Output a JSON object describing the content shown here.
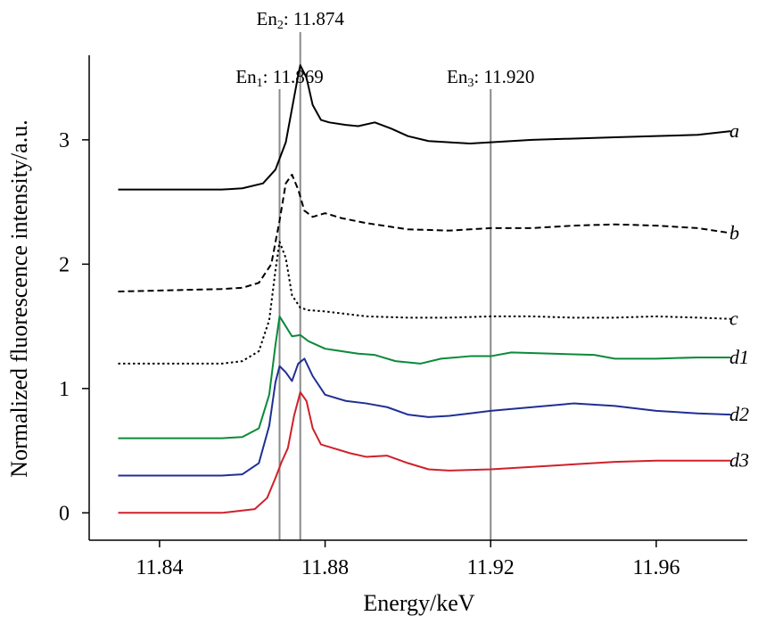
{
  "chart_data": {
    "type": "line",
    "xlabel": "Energy/keV",
    "ylabel": "Normalized fluorescence intensity/a.u.",
    "xlim": [
      11.823,
      11.982
    ],
    "ylim": [
      -0.22,
      3.68
    ],
    "xticks": [
      11.84,
      11.88,
      11.92,
      11.96
    ],
    "xtick_labels": [
      "11.84",
      "11.88",
      "11.92",
      "11.96"
    ],
    "yticks": [
      0,
      1,
      2,
      3
    ],
    "ytick_labels": [
      "0",
      "1",
      "2",
      "3"
    ],
    "grid": false,
    "reference_lines": [
      {
        "prefix": "En",
        "sub": "1",
        "text": ": 11.869",
        "x": 11.869
      },
      {
        "prefix": "En",
        "sub": "2",
        "text": ": 11.874",
        "x": 11.874
      },
      {
        "prefix": "En",
        "sub": "3",
        "text": ": 11.920",
        "x": 11.92
      }
    ],
    "series": [
      {
        "name": "a",
        "color": "#000000",
        "dash": "solid",
        "points": [
          [
            11.83,
            2.6
          ],
          [
            11.855,
            2.6
          ],
          [
            11.86,
            2.61
          ],
          [
            11.865,
            2.65
          ],
          [
            11.868,
            2.76
          ],
          [
            11.8705,
            2.98
          ],
          [
            11.872,
            3.25
          ],
          [
            11.8735,
            3.52
          ],
          [
            11.874,
            3.6
          ],
          [
            11.8755,
            3.5
          ],
          [
            11.877,
            3.28
          ],
          [
            11.879,
            3.16
          ],
          [
            11.881,
            3.14
          ],
          [
            11.885,
            3.12
          ],
          [
            11.888,
            3.11
          ],
          [
            11.892,
            3.14
          ],
          [
            11.896,
            3.09
          ],
          [
            11.9,
            3.03
          ],
          [
            11.905,
            2.99
          ],
          [
            11.91,
            2.98
          ],
          [
            11.915,
            2.97
          ],
          [
            11.92,
            2.98
          ],
          [
            11.93,
            3.0
          ],
          [
            11.94,
            3.01
          ],
          [
            11.95,
            3.02
          ],
          [
            11.96,
            3.03
          ],
          [
            11.97,
            3.04
          ],
          [
            11.978,
            3.07
          ]
        ]
      },
      {
        "name": "b",
        "color": "#000000",
        "dash": "dashed",
        "points": [
          [
            11.83,
            1.78
          ],
          [
            11.855,
            1.8
          ],
          [
            11.86,
            1.81
          ],
          [
            11.864,
            1.85
          ],
          [
            11.867,
            2.0
          ],
          [
            11.869,
            2.35
          ],
          [
            11.8705,
            2.65
          ],
          [
            11.872,
            2.72
          ],
          [
            11.8735,
            2.6
          ],
          [
            11.875,
            2.43
          ],
          [
            11.877,
            2.38
          ],
          [
            11.88,
            2.41
          ],
          [
            11.884,
            2.37
          ],
          [
            11.89,
            2.33
          ],
          [
            11.9,
            2.28
          ],
          [
            11.91,
            2.27
          ],
          [
            11.92,
            2.29
          ],
          [
            11.93,
            2.29
          ],
          [
            11.94,
            2.31
          ],
          [
            11.95,
            2.32
          ],
          [
            11.96,
            2.31
          ],
          [
            11.97,
            2.29
          ],
          [
            11.978,
            2.25
          ]
        ]
      },
      {
        "name": "c",
        "color": "#000000",
        "dash": "dotted",
        "points": [
          [
            11.83,
            1.2
          ],
          [
            11.855,
            1.2
          ],
          [
            11.86,
            1.22
          ],
          [
            11.864,
            1.3
          ],
          [
            11.8665,
            1.55
          ],
          [
            11.868,
            1.95
          ],
          [
            11.869,
            2.18
          ],
          [
            11.8705,
            2.05
          ],
          [
            11.872,
            1.75
          ],
          [
            11.874,
            1.65
          ],
          [
            11.876,
            1.63
          ],
          [
            11.88,
            1.62
          ],
          [
            11.885,
            1.6
          ],
          [
            11.89,
            1.58
          ],
          [
            11.9,
            1.57
          ],
          [
            11.91,
            1.57
          ],
          [
            11.92,
            1.58
          ],
          [
            11.93,
            1.58
          ],
          [
            11.94,
            1.57
          ],
          [
            11.95,
            1.57
          ],
          [
            11.96,
            1.58
          ],
          [
            11.97,
            1.57
          ],
          [
            11.978,
            1.56
          ]
        ]
      },
      {
        "name": "d1",
        "color": "#0a8a3a",
        "dash": "solid",
        "points": [
          [
            11.83,
            0.6
          ],
          [
            11.855,
            0.6
          ],
          [
            11.86,
            0.61
          ],
          [
            11.864,
            0.68
          ],
          [
            11.8665,
            0.95
          ],
          [
            11.868,
            1.35
          ],
          [
            11.869,
            1.58
          ],
          [
            11.8705,
            1.5
          ],
          [
            11.872,
            1.42
          ],
          [
            11.874,
            1.43
          ],
          [
            11.876,
            1.38
          ],
          [
            11.88,
            1.32
          ],
          [
            11.884,
            1.3
          ],
          [
            11.888,
            1.28
          ],
          [
            11.892,
            1.27
          ],
          [
            11.897,
            1.22
          ],
          [
            11.903,
            1.2
          ],
          [
            11.908,
            1.24
          ],
          [
            11.915,
            1.26
          ],
          [
            11.92,
            1.26
          ],
          [
            11.925,
            1.29
          ],
          [
            11.935,
            1.28
          ],
          [
            11.945,
            1.27
          ],
          [
            11.95,
            1.24
          ],
          [
            11.96,
            1.24
          ],
          [
            11.97,
            1.25
          ],
          [
            11.978,
            1.25
          ]
        ]
      },
      {
        "name": "d2",
        "color": "#1f2f94",
        "dash": "solid",
        "points": [
          [
            11.83,
            0.3
          ],
          [
            11.855,
            0.3
          ],
          [
            11.86,
            0.31
          ],
          [
            11.864,
            0.4
          ],
          [
            11.8665,
            0.7
          ],
          [
            11.868,
            1.05
          ],
          [
            11.869,
            1.18
          ],
          [
            11.8705,
            1.13
          ],
          [
            11.872,
            1.06
          ],
          [
            11.8735,
            1.2
          ],
          [
            11.875,
            1.24
          ],
          [
            11.877,
            1.1
          ],
          [
            11.88,
            0.95
          ],
          [
            11.885,
            0.9
          ],
          [
            11.89,
            0.88
          ],
          [
            11.895,
            0.85
          ],
          [
            11.9,
            0.79
          ],
          [
            11.905,
            0.77
          ],
          [
            11.91,
            0.78
          ],
          [
            11.915,
            0.8
          ],
          [
            11.92,
            0.82
          ],
          [
            11.93,
            0.85
          ],
          [
            11.94,
            0.88
          ],
          [
            11.95,
            0.86
          ],
          [
            11.96,
            0.82
          ],
          [
            11.97,
            0.8
          ],
          [
            11.978,
            0.79
          ]
        ]
      },
      {
        "name": "d3",
        "color": "#d0202a",
        "dash": "solid",
        "points": [
          [
            11.83,
            0.0
          ],
          [
            11.855,
            0.0
          ],
          [
            11.863,
            0.03
          ],
          [
            11.866,
            0.12
          ],
          [
            11.868,
            0.28
          ],
          [
            11.8695,
            0.41
          ],
          [
            11.871,
            0.52
          ],
          [
            11.8725,
            0.78
          ],
          [
            11.874,
            0.97
          ],
          [
            11.8755,
            0.9
          ],
          [
            11.877,
            0.68
          ],
          [
            11.879,
            0.55
          ],
          [
            11.882,
            0.52
          ],
          [
            11.886,
            0.48
          ],
          [
            11.89,
            0.45
          ],
          [
            11.895,
            0.46
          ],
          [
            11.9,
            0.4
          ],
          [
            11.905,
            0.35
          ],
          [
            11.91,
            0.34
          ],
          [
            11.92,
            0.35
          ],
          [
            11.93,
            0.37
          ],
          [
            11.94,
            0.39
          ],
          [
            11.95,
            0.41
          ],
          [
            11.96,
            0.42
          ],
          [
            11.97,
            0.42
          ],
          [
            11.978,
            0.42
          ]
        ]
      }
    ]
  }
}
